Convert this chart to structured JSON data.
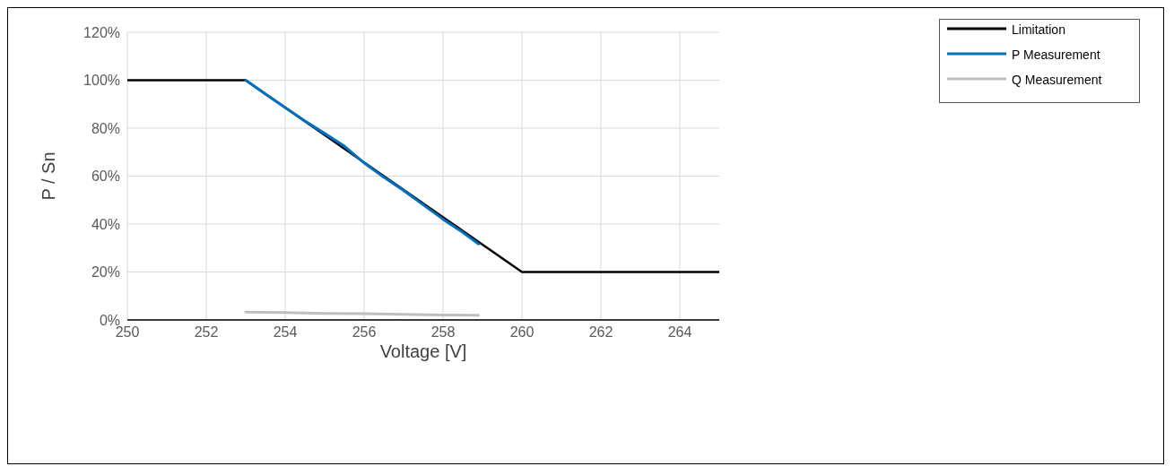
{
  "chart_data": {
    "type": "line",
    "xlabel": "Voltage [V]",
    "ylabel": "P / Sn",
    "xlim": [
      250,
      265
    ],
    "xticks": [
      250,
      252,
      254,
      256,
      258,
      260,
      262,
      264
    ],
    "ylim": [
      0,
      120
    ],
    "yticks": [
      {
        "value": 0,
        "label": "0%"
      },
      {
        "value": 20,
        "label": "20%"
      },
      {
        "value": 40,
        "label": "40%"
      },
      {
        "value": 60,
        "label": "60%"
      },
      {
        "value": 80,
        "label": "80%"
      },
      {
        "value": 100,
        "label": "100%"
      },
      {
        "value": 120,
        "label": "120%"
      }
    ],
    "grid": true,
    "legend": "top right",
    "marker": "none",
    "line_style": "solid",
    "series": [
      {
        "name": "Limitation",
        "color": "#000000",
        "x": [
          250,
          253,
          260,
          265
        ],
        "values": [
          100,
          100,
          20,
          20
        ]
      },
      {
        "name": "P Measurement",
        "color": "#0070c0",
        "x": [
          253,
          253.5,
          254,
          254.5,
          255,
          255.5,
          256,
          256.5,
          257,
          257.5,
          258,
          258.5,
          258.9
        ],
        "values": [
          100,
          94.2,
          88.6,
          83,
          77.8,
          72.5,
          65.5,
          59.5,
          54,
          48,
          42,
          36.5,
          31.7
        ]
      },
      {
        "name": "Q Measurement",
        "color": "#bfbfbf",
        "x": [
          253,
          254,
          255,
          256,
          257,
          258,
          258.9
        ],
        "values": [
          3.3,
          3.1,
          2.7,
          2.6,
          2.3,
          2.1,
          2
        ]
      }
    ]
  }
}
